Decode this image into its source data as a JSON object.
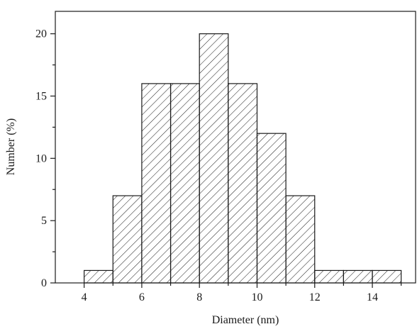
{
  "chart_data": {
    "type": "bar",
    "title": "",
    "xlabel": "Diameter (nm)",
    "ylabel": "Number (%)",
    "bins": [
      [
        4,
        5
      ],
      [
        5,
        6
      ],
      [
        6,
        7
      ],
      [
        7,
        8
      ],
      [
        8,
        9
      ],
      [
        9,
        10
      ],
      [
        10,
        11
      ],
      [
        11,
        12
      ],
      [
        12,
        13
      ],
      [
        13,
        14
      ],
      [
        14,
        15
      ]
    ],
    "values": [
      1,
      7,
      16,
      16,
      20,
      16,
      12,
      7,
      1,
      1,
      1
    ],
    "xlim": [
      3,
      15.5
    ],
    "ylim": [
      0,
      21.8
    ],
    "xticks": [
      4,
      6,
      8,
      10,
      12,
      14
    ],
    "xminor": [
      5,
      7,
      9,
      11,
      13,
      15
    ],
    "yticks": [
      0,
      5,
      10,
      15,
      20
    ],
    "yminor": [
      2.5,
      7.5,
      12.5,
      17.5
    ],
    "bar_fill": "hatched",
    "colors": {
      "stroke": "#1a1a1a",
      "background": "#ffffff"
    }
  }
}
